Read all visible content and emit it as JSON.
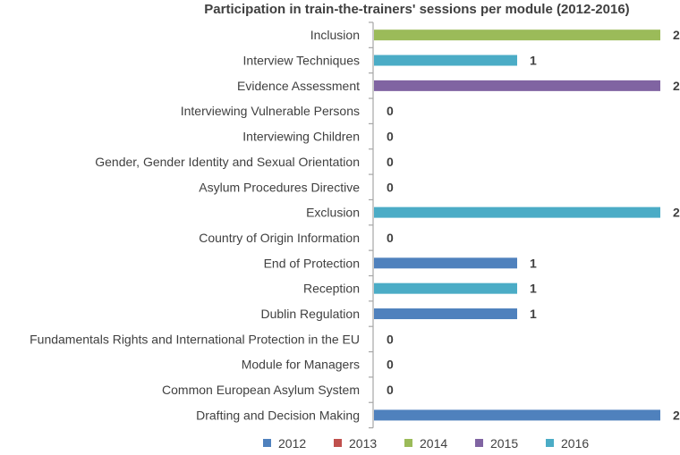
{
  "chart_data": {
    "type": "bar",
    "orientation": "horizontal",
    "title": "Participation in train-the-trainers' sessions per module (2012-2016)",
    "xlabel": "",
    "ylabel": "",
    "xlim": [
      0,
      2
    ],
    "grid": false,
    "legend_position": "bottom",
    "series": [
      {
        "name": "2012",
        "color": "#4f81bd"
      },
      {
        "name": "2013",
        "color": "#c0504d"
      },
      {
        "name": "2014",
        "color": "#9bbb59"
      },
      {
        "name": "2015",
        "color": "#8064a2"
      },
      {
        "name": "2016",
        "color": "#4bacc6"
      }
    ],
    "bars": [
      {
        "category": "Inclusion",
        "value": 2,
        "series": "2014"
      },
      {
        "category": "Interview Techniques",
        "value": 1,
        "series": "2016"
      },
      {
        "category": "Evidence Assessment",
        "value": 2,
        "series": "2015"
      },
      {
        "category": "Interviewing Vulnerable Persons",
        "value": 0,
        "series": ""
      },
      {
        "category": "Interviewing Children",
        "value": 0,
        "series": ""
      },
      {
        "category": "Gender, Gender Identity and Sexual Orientation",
        "value": 0,
        "series": ""
      },
      {
        "category": "Asylum Procedures Directive",
        "value": 0,
        "series": ""
      },
      {
        "category": "Exclusion",
        "value": 2,
        "series": "2016"
      },
      {
        "category": "Country of Origin Information",
        "value": 0,
        "series": ""
      },
      {
        "category": "End of Protection",
        "value": 1,
        "series": "2012"
      },
      {
        "category": "Reception",
        "value": 1,
        "series": "2016"
      },
      {
        "category": "Dublin Regulation",
        "value": 1,
        "series": "2012"
      },
      {
        "category": "Fundamentals Rights and International Protection in the EU",
        "value": 0,
        "series": ""
      },
      {
        "category": "Module for Managers",
        "value": 0,
        "series": ""
      },
      {
        "category": "Common European Asylum System",
        "value": 0,
        "series": ""
      },
      {
        "category": "Drafting and Decision Making",
        "value": 2,
        "series": "2012"
      }
    ]
  }
}
